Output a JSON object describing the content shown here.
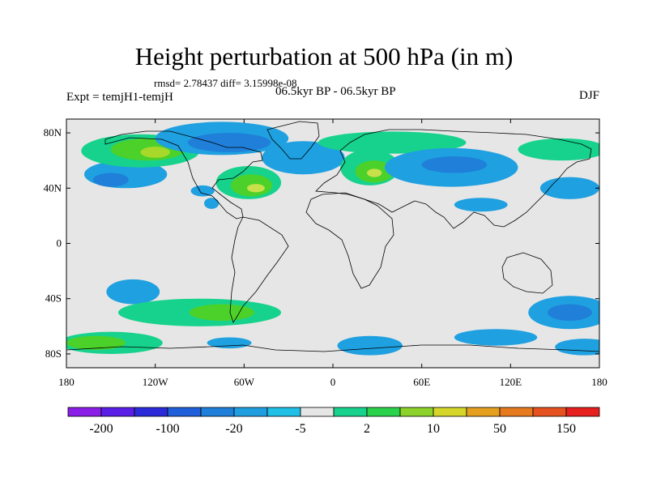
{
  "title": "Height perturbation at 500 hPa (in m)",
  "stats_line": "rmsd= 2.78437 diff= 3.15998e-08",
  "experiment_label": "Expt = temjH1-temjH",
  "period_label": "06.5kyr BP - 06.5kyr BP",
  "season_label": "DJF",
  "map": {
    "lon_range": [
      -180,
      180
    ],
    "lat_range": [
      -90,
      90
    ],
    "lon_ticks": [
      {
        "value": -180,
        "label": "180"
      },
      {
        "value": -120,
        "label": "120W"
      },
      {
        "value": -60,
        "label": "60W"
      },
      {
        "value": 0,
        "label": "0"
      },
      {
        "value": 60,
        "label": "60E"
      },
      {
        "value": 120,
        "label": "120E"
      },
      {
        "value": 180,
        "label": "180"
      }
    ],
    "lat_ticks": [
      {
        "value": 80,
        "label": "80N"
      },
      {
        "value": 40,
        "label": "40N"
      },
      {
        "value": 0,
        "label": "0"
      },
      {
        "value": -40,
        "label": "40S"
      },
      {
        "value": -80,
        "label": "80S"
      }
    ],
    "background_color": "#e6e6e6",
    "features": [
      {
        "lon": -140,
        "lat": 50,
        "rx": 28,
        "ry": 10,
        "color": "#1fa0e0"
      },
      {
        "lon": -150,
        "lat": 46,
        "rx": 12,
        "ry": 5,
        "color": "#1f7fd9"
      },
      {
        "lon": -130,
        "lat": 67,
        "rx": 40,
        "ry": 12,
        "color": "#16d28c"
      },
      {
        "lon": -125,
        "lat": 68,
        "rx": 25,
        "ry": 8,
        "color": "#4cd12a"
      },
      {
        "lon": -120,
        "lat": 66,
        "rx": 10,
        "ry": 4,
        "color": "#a8d92a"
      },
      {
        "lon": -75,
        "lat": 76,
        "rx": 45,
        "ry": 12,
        "color": "#1fa0e0"
      },
      {
        "lon": -70,
        "lat": 73,
        "rx": 28,
        "ry": 7,
        "color": "#1f7fd9"
      },
      {
        "lon": -57,
        "lat": 44,
        "rx": 22,
        "ry": 12,
        "color": "#16d28c"
      },
      {
        "lon": -55,
        "lat": 42,
        "rx": 14,
        "ry": 8,
        "color": "#4cd12a"
      },
      {
        "lon": -52,
        "lat": 40,
        "rx": 6,
        "ry": 3,
        "color": "#c8e04a"
      },
      {
        "lon": -88,
        "lat": 38,
        "rx": 8,
        "ry": 4,
        "color": "#1fa0e0"
      },
      {
        "lon": -82,
        "lat": 29,
        "rx": 5,
        "ry": 4,
        "color": "#1fa0e0"
      },
      {
        "lon": -20,
        "lat": 62,
        "rx": 28,
        "ry": 12,
        "color": "#1fa0e0"
      },
      {
        "lon": 40,
        "lat": 73,
        "rx": 50,
        "ry": 8,
        "color": "#16d28c"
      },
      {
        "lon": 25,
        "lat": 55,
        "rx": 20,
        "ry": 13,
        "color": "#16d28c"
      },
      {
        "lon": 28,
        "lat": 52,
        "rx": 13,
        "ry": 8,
        "color": "#4cd12a"
      },
      {
        "lon": 28,
        "lat": 51,
        "rx": 5,
        "ry": 3,
        "color": "#c8e04a"
      },
      {
        "lon": 80,
        "lat": 55,
        "rx": 45,
        "ry": 14,
        "color": "#1fa0e0"
      },
      {
        "lon": 82,
        "lat": 57,
        "rx": 22,
        "ry": 6,
        "color": "#1f7fd9"
      },
      {
        "lon": 100,
        "lat": 28,
        "rx": 18,
        "ry": 5,
        "color": "#1fa0e0"
      },
      {
        "lon": 155,
        "lat": 68,
        "rx": 30,
        "ry": 8,
        "color": "#16d28c"
      },
      {
        "lon": 160,
        "lat": 40,
        "rx": 20,
        "ry": 8,
        "color": "#1fa0e0"
      },
      {
        "lon": -135,
        "lat": -35,
        "rx": 18,
        "ry": 9,
        "color": "#1fa0e0"
      },
      {
        "lon": -90,
        "lat": -50,
        "rx": 55,
        "ry": 10,
        "color": "#16d28c"
      },
      {
        "lon": -75,
        "lat": -50,
        "rx": 22,
        "ry": 6,
        "color": "#4cd12a"
      },
      {
        "lon": -150,
        "lat": -72,
        "rx": 35,
        "ry": 8,
        "color": "#16d28c"
      },
      {
        "lon": -160,
        "lat": -72,
        "rx": 20,
        "ry": 5,
        "color": "#4cd12a"
      },
      {
        "lon": -70,
        "lat": -72,
        "rx": 15,
        "ry": 4,
        "color": "#1fa0e0"
      },
      {
        "lon": 25,
        "lat": -74,
        "rx": 22,
        "ry": 7,
        "color": "#1fa0e0"
      },
      {
        "lon": 110,
        "lat": -68,
        "rx": 28,
        "ry": 6,
        "color": "#1fa0e0"
      },
      {
        "lon": 160,
        "lat": -50,
        "rx": 28,
        "ry": 12,
        "color": "#1fa0e0"
      },
      {
        "lon": 160,
        "lat": -50,
        "rx": 15,
        "ry": 6,
        "color": "#1f7fd9"
      },
      {
        "lon": 170,
        "lat": -75,
        "rx": 20,
        "ry": 6,
        "color": "#1fa0e0"
      }
    ]
  },
  "colorbar": {
    "colors": [
      "#8a1ee6",
      "#5a1ee6",
      "#2a2ad9",
      "#1f5fd9",
      "#1f7fd9",
      "#1f9fe0",
      "#1fbfe6",
      "#e6e6e6",
      "#16d28c",
      "#2ad24c",
      "#8cd22a",
      "#d6d62a",
      "#e6a01f",
      "#e67a1f",
      "#e6521f",
      "#e61f1f"
    ],
    "labels": [
      {
        "boundary": 1,
        "text": "-200"
      },
      {
        "boundary": 3,
        "text": "-100"
      },
      {
        "boundary": 5,
        "text": "-20"
      },
      {
        "boundary": 7,
        "text": "-5"
      },
      {
        "boundary": 9,
        "text": "2"
      },
      {
        "boundary": 11,
        "text": "10"
      },
      {
        "boundary": 13,
        "text": "50"
      },
      {
        "boundary": 15,
        "text": "150"
      }
    ]
  }
}
